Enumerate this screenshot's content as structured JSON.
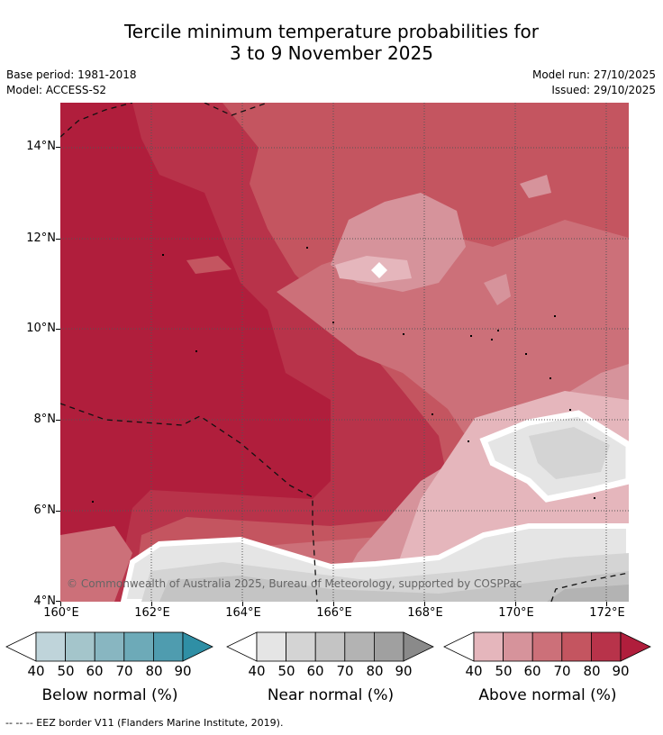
{
  "title": {
    "line1": "Tercile minimum temperature probabilities for",
    "line2": "3 to 9 November 2025"
  },
  "meta": {
    "base_period": "Base period: 1981-2018",
    "model": "Model: ACCESS-S2",
    "model_run": "Model run: 27/10/2025",
    "issued": "Issued: 29/10/2025"
  },
  "map": {
    "lat_labels": [
      "14°N",
      "12°N",
      "10°N",
      "8°N",
      "6°N",
      "4°N"
    ],
    "lon_labels": [
      "160°E",
      "162°E",
      "164°E",
      "166°E",
      "168°E",
      "170°E",
      "172°E"
    ],
    "copyright": "© Commonwealth of Australia 2025, Bureau of Meteorology, supported by COSPPac"
  },
  "legend": {
    "below": {
      "label": "Below normal (%)",
      "ticks": [
        "40",
        "50",
        "60",
        "70",
        "80",
        "90"
      ],
      "colors": [
        "#bfd4da",
        "#a4c5cb",
        "#88b6c1",
        "#6daab8",
        "#4f9caf",
        "#2f8fa5"
      ]
    },
    "near": {
      "label": "Near normal (%)",
      "ticks": [
        "40",
        "50",
        "60",
        "70",
        "80",
        "90"
      ],
      "colors": [
        "#e5e5e5",
        "#d4d4d4",
        "#c4c4c4",
        "#b3b3b3",
        "#a0a0a0",
        "#8a8a8a"
      ]
    },
    "above": {
      "label": "Above normal (%)",
      "ticks": [
        "40",
        "50",
        "60",
        "70",
        "80",
        "90"
      ],
      "colors": [
        "#e5b6bc",
        "#d6939b",
        "#cc7079",
        "#c45560",
        "#b8334a",
        "#b01e3c"
      ]
    }
  },
  "footnote": "--  --  -- EEZ border V11 (Flanders Marine Institute, 2019)."
}
